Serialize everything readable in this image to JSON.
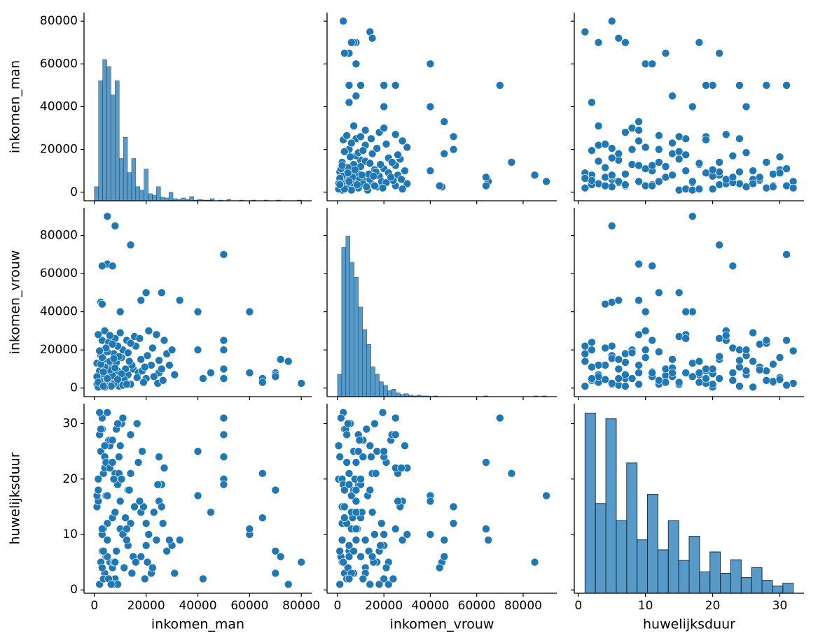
{
  "chart_data": {
    "type": "pairplot",
    "color": "#1f77b4",
    "variables": [
      {
        "name": "inkomen_man",
        "lim": [
          -4000,
          84000
        ],
        "ticks": [
          0,
          20000,
          40000,
          60000,
          80000
        ],
        "values": [
          2000,
          4000,
          6000,
          3000,
          8000,
          5000,
          10000,
          7000,
          12000,
          1000,
          15000,
          4500,
          9000,
          20000,
          3500,
          6500,
          11000,
          2500,
          14000,
          5500,
          18000,
          8500,
          25000,
          3000,
          7500,
          13000,
          1500,
          22000,
          4000,
          9500,
          16000,
          6000,
          28000,
          2000,
          10500,
          5000,
          24000,
          3500,
          12500,
          7000,
          19000,
          1000,
          26000,
          8000,
          4500,
          17000,
          2500,
          11500,
          30000,
          6000,
          21000,
          3000,
          9000,
          14500,
          5000,
          23000,
          1500,
          13500,
          7500,
          27000,
          4000,
          10000,
          2000,
          16500,
          5500,
          20500,
          8500,
          29000,
          3500,
          12000,
          6500,
          15500,
          1000,
          24500,
          9500,
          4500,
          18500,
          7000,
          2500,
          11000,
          22500,
          5000,
          13000,
          3000,
          26500,
          8000,
          17500,
          1500,
          10500,
          6000,
          25000,
          4000,
          14000,
          9000,
          2000,
          19500,
          7500,
          31000,
          3500,
          12500,
          80000,
          75000,
          72000,
          70000,
          70000,
          70000,
          65000,
          65000,
          60000,
          60000,
          50000,
          50000,
          50000,
          50000,
          50000,
          45000,
          40000,
          40000,
          42000,
          33000,
          20000,
          5000,
          8000,
          14000,
          5000,
          7000,
          3000,
          26000,
          2500,
          3000,
          18000,
          10000
        ]
      },
      {
        "name": "inkomen_vrouw",
        "lim": [
          -4500,
          94500
        ],
        "ticks": [
          0,
          20000,
          40000,
          60000,
          80000
        ],
        "values": [
          1000,
          3000,
          2000,
          5000,
          4000,
          8000,
          6000,
          12000,
          3000,
          2000,
          10000,
          6000,
          9000,
          5000,
          15000,
          4000,
          20000,
          7000,
          2000,
          11000,
          15000,
          3000,
          8000,
          25000,
          18000,
          7000,
          500,
          12000,
          30000,
          1000,
          22000,
          14000,
          18000,
          9000,
          16000,
          2500,
          28000,
          20000,
          25000,
          6500,
          3000,
          13000,
          10000,
          26000,
          1500,
          8000,
          17000,
          4500,
          20000,
          9500,
          30000,
          3500,
          22000,
          12000,
          19000,
          6000,
          28000,
          14000,
          2000,
          25000,
          11000,
          29000,
          4000,
          5500,
          24000,
          17000,
          13500,
          12000,
          8500,
          10000,
          1000,
          27000,
          6000,
          2500,
          16500,
          21000,
          9000,
          23000,
          12500,
          1500,
          21000,
          5000,
          18500,
          16000,
          4000,
          10500,
          26000,
          3000,
          7500,
          27500,
          14500,
          500,
          23500,
          4500,
          19500,
          11000,
          15500,
          7000,
          1000,
          2000,
          2500,
          14000,
          15000,
          8000,
          7000,
          6000,
          5000,
          3000,
          40000,
          8000,
          70000,
          25000,
          20000,
          10000,
          5000,
          8000,
          40000,
          20000,
          5000,
          46000,
          50000,
          90000,
          85000,
          75000,
          65000,
          64000,
          64000,
          50000,
          45000,
          44000,
          46000,
          40000
        ]
      },
      {
        "name": "huwelijksduur",
        "lim": [
          -0.6,
          33.6
        ],
        "ticks": [
          0,
          10,
          20,
          30
        ],
        "values": [
          1,
          3,
          5,
          7,
          2,
          9,
          11,
          4,
          13,
          15,
          6,
          17,
          19,
          8,
          21,
          23,
          10,
          25,
          12,
          27,
          14,
          29,
          16,
          31,
          1,
          18,
          20,
          3,
          22,
          24,
          5,
          26,
          7,
          28,
          30,
          32,
          9,
          2,
          11,
          13,
          15,
          17,
          19,
          21,
          6,
          23,
          25,
          4,
          8,
          27,
          10,
          29,
          1,
          3,
          12,
          14,
          16,
          18,
          20,
          22,
          24,
          26,
          28,
          30,
          2,
          5,
          7,
          9,
          11,
          13,
          1,
          15,
          17,
          19,
          21,
          23,
          25,
          27,
          29,
          31,
          4,
          6,
          8,
          10,
          12,
          14,
          16,
          18,
          20,
          22,
          24,
          26,
          28,
          30,
          32,
          2,
          5,
          3,
          7,
          9,
          5,
          1,
          6,
          18,
          7,
          3,
          21,
          13,
          10,
          11,
          31,
          28,
          24,
          20,
          19,
          14,
          17,
          25,
          2,
          9,
          12,
          17,
          5,
          21,
          9,
          23,
          11,
          15,
          5,
          4,
          6,
          16
        ]
      }
    ],
    "diagonal": [
      {
        "bins": [
          0,
          1600,
          3200,
          4800,
          6400,
          8000,
          9600,
          11200,
          12800,
          14400,
          16000,
          17600,
          19200,
          20800,
          22400,
          24000,
          25600,
          27200,
          28800,
          30400,
          32000,
          33600,
          35200,
          36800,
          38400,
          40000,
          41600,
          43200,
          44800,
          46400,
          48000,
          49600,
          51200,
          52800,
          54400,
          56000,
          57600,
          59200,
          60800,
          62400,
          64000,
          65600,
          67200,
          68800,
          70400,
          72000,
          73600,
          75200,
          76800,
          78400,
          80000
        ],
        "counts": [
          20,
          170,
          200,
          190,
          150,
          170,
          60,
          90,
          40,
          60,
          20,
          15,
          45,
          10,
          8,
          20,
          5,
          4,
          12,
          3,
          2,
          4,
          2,
          6,
          1,
          2,
          1,
          1,
          3,
          0,
          1,
          0,
          2,
          0,
          0,
          1,
          0,
          0,
          1,
          0,
          0,
          1,
          0,
          0,
          1,
          0,
          0,
          0,
          0,
          1
        ]
      },
      {
        "bins": [
          0,
          1800,
          3600,
          5400,
          7200,
          9000,
          10800,
          12600,
          14400,
          16200,
          18000,
          19800,
          21600,
          23400,
          25200,
          27000,
          28800,
          30600,
          32400,
          34200,
          36000,
          37800,
          39600,
          41400,
          43200,
          45000,
          46800,
          48600,
          50400,
          52200,
          54000,
          55800,
          57600,
          59400,
          61200,
          63000,
          64800,
          66600,
          68400,
          70200,
          72000,
          73800,
          75600,
          77400,
          79200,
          81000,
          82800,
          84600,
          86400,
          88200,
          90000
        ],
        "counts": [
          30,
          200,
          215,
          180,
          160,
          120,
          90,
          70,
          40,
          30,
          20,
          15,
          8,
          10,
          5,
          3,
          4,
          2,
          1,
          2,
          1,
          1,
          0,
          1,
          0,
          0,
          0,
          0,
          0,
          0,
          0,
          0,
          0,
          0,
          0,
          1,
          0,
          0,
          0,
          0,
          0,
          0,
          0,
          0,
          0,
          0,
          0,
          1,
          0,
          1
        ]
      },
      {
        "bins": [
          1,
          2.55,
          4.1,
          5.65,
          7.2,
          8.75,
          10.3,
          11.85,
          13.4,
          14.95,
          16.5,
          18.05,
          19.6,
          21.15,
          22.7,
          24.25,
          25.8,
          27.35,
          28.9,
          30.45,
          32
        ],
        "counts": [
          253,
          126,
          245,
          102,
          183,
          75,
          139,
          61,
          102,
          46,
          80,
          30,
          58,
          28,
          47,
          22,
          36,
          18,
          10,
          14
        ]
      }
    ]
  }
}
